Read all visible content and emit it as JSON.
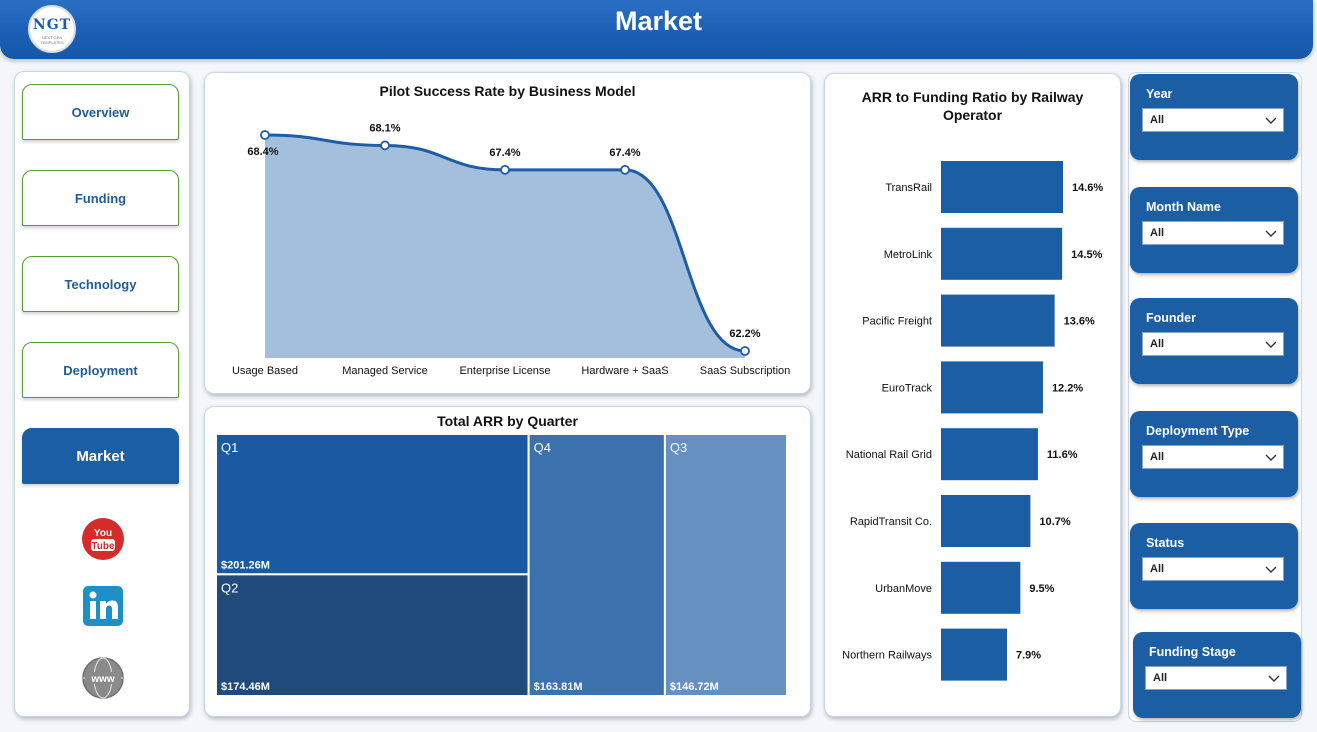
{
  "header": {
    "title": "Market",
    "logo_text": "NGT",
    "logo_subtext": "NEXT GEN TEMPLATES"
  },
  "nav": {
    "items": [
      {
        "label": "Overview"
      },
      {
        "label": "Funding"
      },
      {
        "label": "Technology"
      },
      {
        "label": "Deployment"
      },
      {
        "label": "Market"
      }
    ],
    "active": "Market",
    "social_icons": [
      "youtube-icon",
      "linkedin-icon",
      "www-globe-icon"
    ]
  },
  "colors": {
    "primary": "#1c5ea4",
    "area_fill": "#a3bfdc",
    "line": "#1f5ca8",
    "treemap": [
      "#1a5aa2",
      "#1f4a7a",
      "#3b72ad",
      "#6690c0"
    ]
  },
  "chart_data": [
    {
      "type": "area",
      "title": "Pilot Success Rate by Business Model",
      "categories": [
        "Usage Based",
        "Managed Service",
        "Enterprise License",
        "Hardware + SaaS",
        "SaaS Subscription"
      ],
      "values": [
        68.4,
        68.1,
        67.4,
        67.4,
        62.2
      ],
      "labels": [
        "68.4%",
        "68.1%",
        "67.4%",
        "67.4%",
        "62.2%"
      ],
      "ylim": [
        62.2,
        68.4
      ],
      "grid": false
    },
    {
      "type": "treemap",
      "title": "Total ARR by Quarter",
      "items": [
        {
          "name": "Q1",
          "value": 201.26,
          "label": "$201.26M"
        },
        {
          "name": "Q2",
          "value": 174.46,
          "label": "$174.46M"
        },
        {
          "name": "Q4",
          "value": 163.81,
          "label": "$163.81M"
        },
        {
          "name": "Q3",
          "value": 146.72,
          "label": "$146.72M"
        }
      ]
    },
    {
      "type": "bar",
      "orientation": "horizontal",
      "title": "ARR to Funding Ratio by Railway Operator",
      "categories": [
        "TransRail",
        "MetroLink",
        "Pacific Freight",
        "EuroTrack",
        "National Rail Grid",
        "RapidTransit Co.",
        "UrbanMove",
        "Northern Railways"
      ],
      "values": [
        14.6,
        14.5,
        13.6,
        12.2,
        11.6,
        10.7,
        9.5,
        7.9
      ],
      "labels": [
        "14.6%",
        "14.5%",
        "13.6%",
        "12.2%",
        "11.6%",
        "10.7%",
        "9.5%",
        "7.9%"
      ],
      "xlim": [
        0,
        14.6
      ]
    }
  ],
  "filters": [
    {
      "label": "Year",
      "value": "All"
    },
    {
      "label": "Month Name",
      "value": "All"
    },
    {
      "label": "Founder",
      "value": "All"
    },
    {
      "label": "Deployment Type",
      "value": "All"
    },
    {
      "label": "Status",
      "value": "All"
    },
    {
      "label": "Funding Stage",
      "value": "All"
    }
  ]
}
